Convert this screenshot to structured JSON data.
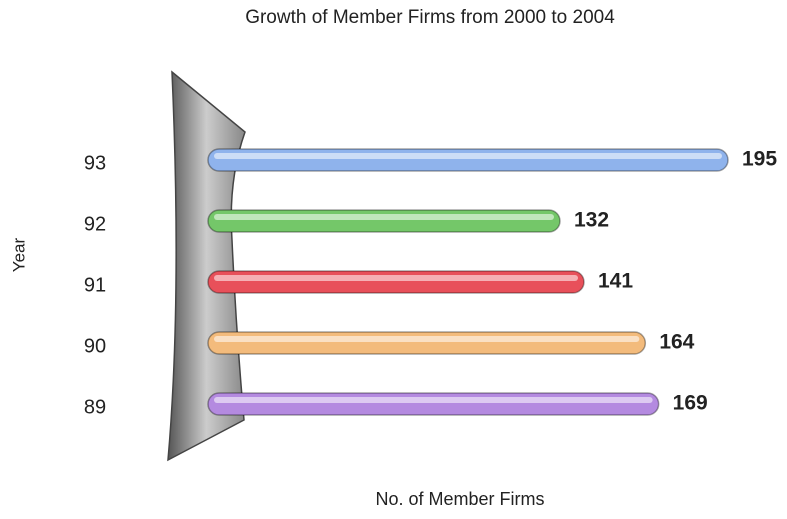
{
  "chart_data": {
    "type": "bar",
    "orientation": "horizontal",
    "title": "Growth of Member Firms from 2000 to 2004",
    "x_label": "No. of Member Firms",
    "y_label": "Year",
    "categories": [
      "93",
      "92",
      "91",
      "90",
      "89"
    ],
    "values": [
      195,
      132,
      141,
      164,
      169
    ],
    "colors": [
      "#8fb3ec",
      "#74c769",
      "#e8505a",
      "#f3bb7c",
      "#b48ae0"
    ]
  }
}
